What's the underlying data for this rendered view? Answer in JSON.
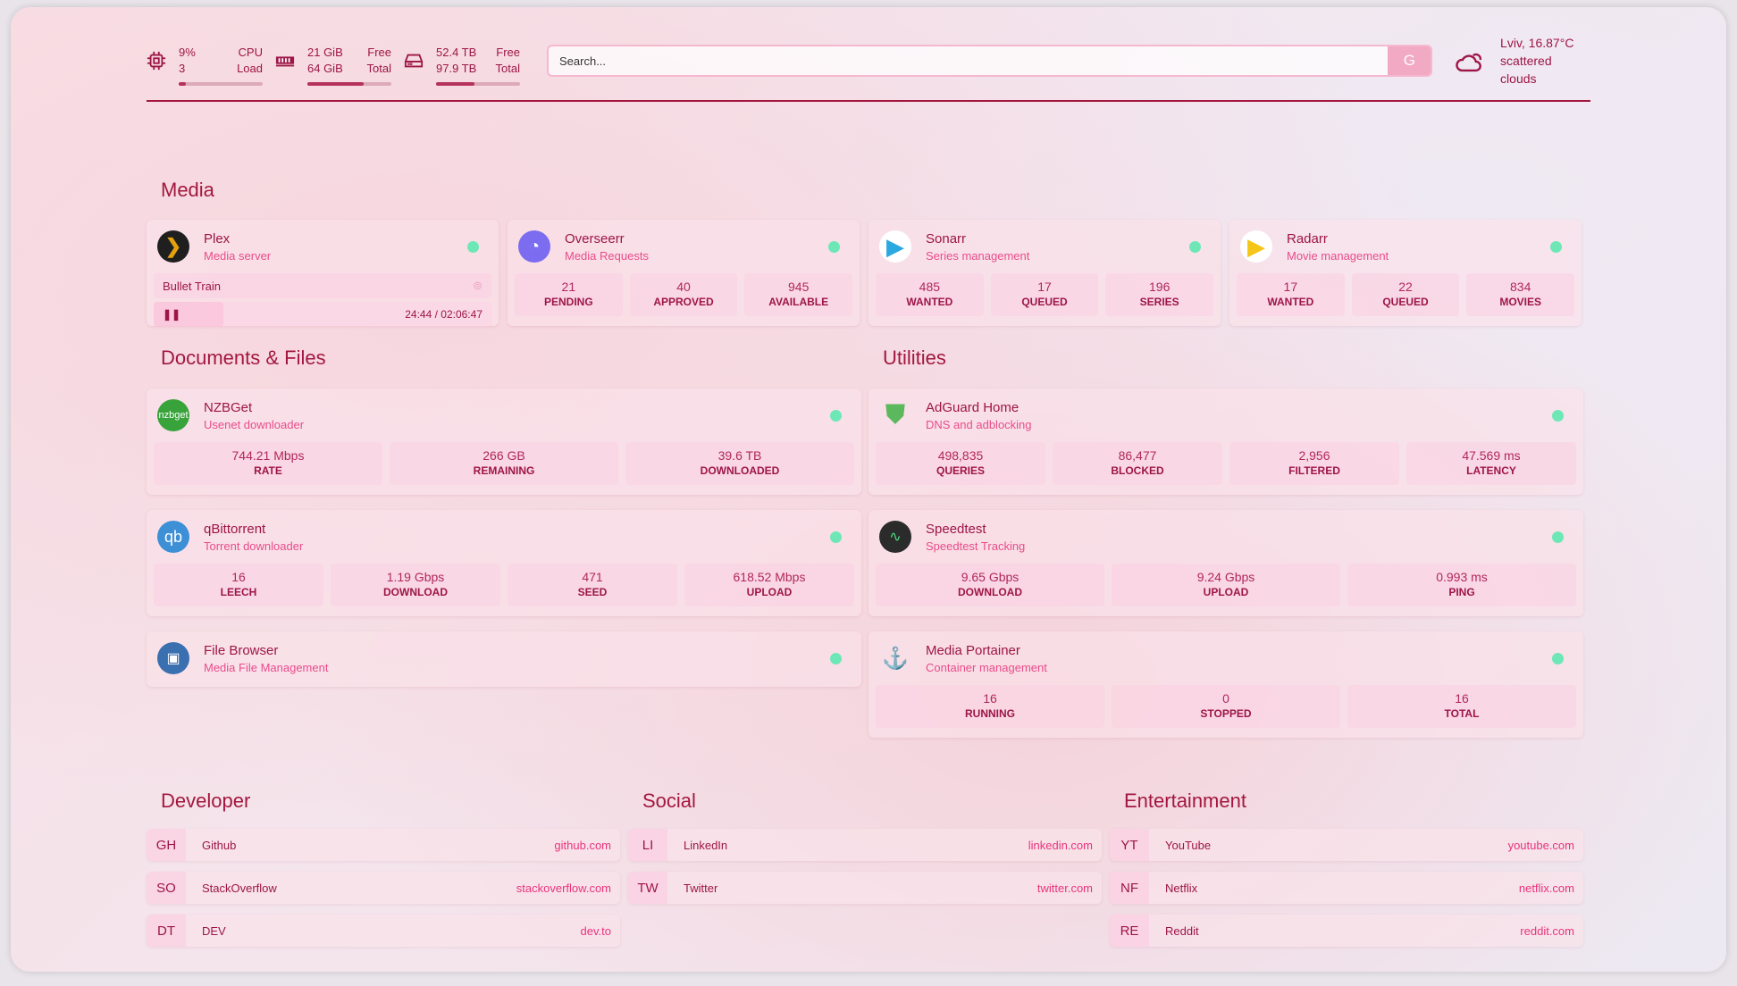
{
  "header": {
    "cpu": {
      "value": "9%",
      "value2": "3",
      "label": "CPU",
      "label2": "Load",
      "percent": 9
    },
    "memory": {
      "value": "21 GiB",
      "value2": "64 GiB",
      "label": "Free",
      "label2": "Total",
      "percent": 67
    },
    "disk": {
      "value": "52.4 TB",
      "value2": "97.9 TB",
      "label": "Free",
      "label2": "Total",
      "percent": 46
    },
    "search": {
      "placeholder": "Search...",
      "button": "G"
    },
    "weather": {
      "location": "Lviv, 16.87°C",
      "condition": "scattered clouds"
    }
  },
  "sections": {
    "media": "Media",
    "docs": "Documents & Files",
    "utilities": "Utilities",
    "developer": "Developer",
    "social": "Social",
    "entertainment": "Entertainment"
  },
  "media": [
    {
      "name": "Plex",
      "desc": "Media server",
      "now_playing": "Bullet Train",
      "time": "24:44 / 02:06:47",
      "status": "online"
    },
    {
      "name": "Overseerr",
      "desc": "Media Requests",
      "stats": [
        {
          "v": "21",
          "l": "PENDING"
        },
        {
          "v": "40",
          "l": "APPROVED"
        },
        {
          "v": "945",
          "l": "AVAILABLE"
        }
      ]
    },
    {
      "name": "Sonarr",
      "desc": "Series management",
      "stats": [
        {
          "v": "485",
          "l": "WANTED"
        },
        {
          "v": "17",
          "l": "QUEUED"
        },
        {
          "v": "196",
          "l": "SERIES"
        }
      ]
    },
    {
      "name": "Radarr",
      "desc": "Movie management",
      "stats": [
        {
          "v": "17",
          "l": "WANTED"
        },
        {
          "v": "22",
          "l": "QUEUED"
        },
        {
          "v": "834",
          "l": "MOVIES"
        }
      ]
    }
  ],
  "docs": [
    {
      "name": "NZBGet",
      "desc": "Usenet downloader",
      "icon_text": "nzbget",
      "stats": [
        {
          "v": "744.21 Mbps",
          "l": "RATE"
        },
        {
          "v": "266 GB",
          "l": "REMAINING"
        },
        {
          "v": "39.6 TB",
          "l": "DOWNLOADED"
        }
      ]
    },
    {
      "name": "qBittorrent",
      "desc": "Torrent downloader",
      "icon_text": "qb",
      "stats": [
        {
          "v": "16",
          "l": "LEECH"
        },
        {
          "v": "1.19 Gbps",
          "l": "DOWNLOAD"
        },
        {
          "v": "471",
          "l": "SEED"
        },
        {
          "v": "618.52 Mbps",
          "l": "UPLOAD"
        }
      ]
    },
    {
      "name": "File Browser",
      "desc": "Media File Management"
    }
  ],
  "utilities": [
    {
      "name": "AdGuard Home",
      "desc": "DNS and adblocking",
      "stats": [
        {
          "v": "498,835",
          "l": "QUERIES"
        },
        {
          "v": "86,477",
          "l": "BLOCKED"
        },
        {
          "v": "2,956",
          "l": "FILTERED"
        },
        {
          "v": "47.569 ms",
          "l": "LATENCY"
        }
      ]
    },
    {
      "name": "Speedtest",
      "desc": "Speedtest Tracking",
      "stats": [
        {
          "v": "9.65 Gbps",
          "l": "DOWNLOAD"
        },
        {
          "v": "9.24 Gbps",
          "l": "UPLOAD"
        },
        {
          "v": "0.993 ms",
          "l": "PING"
        }
      ]
    },
    {
      "name": "Media Portainer",
      "desc": "Container management",
      "stats": [
        {
          "v": "16",
          "l": "RUNNING"
        },
        {
          "v": "0",
          "l": "STOPPED"
        },
        {
          "v": "16",
          "l": "TOTAL"
        }
      ]
    }
  ],
  "bookmarks": {
    "developer": [
      {
        "abbr": "GH",
        "name": "Github",
        "url": "github.com"
      },
      {
        "abbr": "SO",
        "name": "StackOverflow",
        "url": "stackoverflow.com"
      },
      {
        "abbr": "DT",
        "name": "DEV",
        "url": "dev.to"
      }
    ],
    "social": [
      {
        "abbr": "LI",
        "name": "LinkedIn",
        "url": "linkedin.com"
      },
      {
        "abbr": "TW",
        "name": "Twitter",
        "url": "twitter.com"
      }
    ],
    "entertainment": [
      {
        "abbr": "YT",
        "name": "YouTube",
        "url": "youtube.com"
      },
      {
        "abbr": "NF",
        "name": "Netflix",
        "url": "netflix.com"
      },
      {
        "abbr": "RE",
        "name": "Reddit",
        "url": "reddit.com"
      }
    ]
  },
  "colors": {
    "accent": "#a3173f",
    "status_online": "#6ee7b7",
    "link": "#e9337c"
  }
}
